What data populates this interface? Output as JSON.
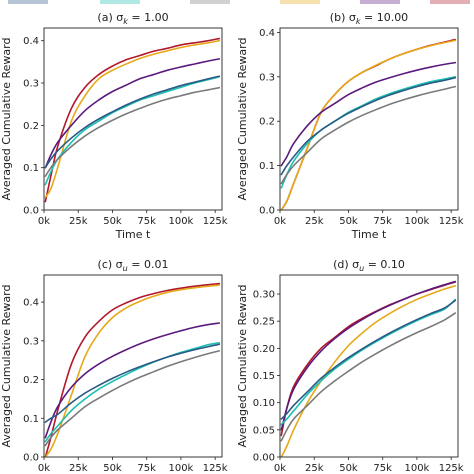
{
  "shared": {
    "ylabel": "Averaged Cumulative Reward",
    "xlabel": "Time t",
    "xticks": [
      "0k",
      "25k",
      "50k",
      "75k",
      "100k",
      "125k"
    ],
    "colors": {
      "purple": "#5b1a7e",
      "red": "#b2182b",
      "orange": "#e6a817",
      "teal": "#1cbfb0",
      "navy": "#2a5a86",
      "gray": "#7a7a7a"
    }
  },
  "chart_data": [
    {
      "type": "line",
      "title": "(a) σ_k = 1.00",
      "xlabel": "Time t",
      "ylabel": "Averaged Cumulative Reward",
      "xlim": [
        0,
        130
      ],
      "ylim": [
        0,
        0.43
      ],
      "yticks": [
        "0.0",
        "0.1",
        "0.2",
        "0.3",
        "0.4"
      ],
      "x": [
        1,
        5,
        10,
        20,
        30,
        40,
        50,
        60,
        70,
        80,
        90,
        100,
        110,
        120,
        128
      ],
      "series": [
        {
          "color": "#b2182b",
          "values": [
            0.02,
            0.08,
            0.15,
            0.24,
            0.29,
            0.32,
            0.34,
            0.355,
            0.365,
            0.375,
            0.382,
            0.39,
            0.395,
            0.4,
            0.405
          ]
        },
        {
          "color": "#e6a817",
          "values": [
            0.03,
            0.05,
            0.1,
            0.21,
            0.27,
            0.31,
            0.33,
            0.345,
            0.358,
            0.368,
            0.376,
            0.384,
            0.39,
            0.395,
            0.4
          ]
        },
        {
          "color": "#5b1a7e",
          "values": [
            0.1,
            0.13,
            0.16,
            0.2,
            0.235,
            0.26,
            0.28,
            0.295,
            0.31,
            0.32,
            0.33,
            0.338,
            0.345,
            0.352,
            0.357
          ]
        },
        {
          "color": "#1cbfb0",
          "values": [
            0.06,
            0.09,
            0.12,
            0.16,
            0.19,
            0.21,
            0.23,
            0.245,
            0.26,
            0.27,
            0.28,
            0.29,
            0.3,
            0.308,
            0.315
          ]
        },
        {
          "color": "#2a5a86",
          "values": [
            0.1,
            0.12,
            0.14,
            0.17,
            0.195,
            0.215,
            0.232,
            0.248,
            0.262,
            0.274,
            0.284,
            0.294,
            0.302,
            0.31,
            0.316
          ]
        },
        {
          "color": "#7a7a7a",
          "values": [
            0.08,
            0.1,
            0.12,
            0.15,
            0.175,
            0.195,
            0.212,
            0.227,
            0.24,
            0.252,
            0.262,
            0.27,
            0.278,
            0.284,
            0.289
          ]
        }
      ]
    },
    {
      "type": "line",
      "title": "(b) σ_k = 10.00",
      "xlabel": "Time t",
      "ylabel": "Averaged Cumulative Reward",
      "xlim": [
        0,
        130
      ],
      "ylim": [
        0,
        0.41
      ],
      "yticks": [
        "0.0",
        "0.1",
        "0.2",
        "0.3",
        "0.4"
      ],
      "x": [
        1,
        5,
        10,
        20,
        30,
        40,
        50,
        60,
        70,
        80,
        90,
        100,
        110,
        120,
        128
      ],
      "series": [
        {
          "color": "#b2182b",
          "values": [
            0.0,
            0.02,
            0.06,
            0.14,
            0.22,
            0.26,
            0.29,
            0.31,
            0.325,
            0.34,
            0.352,
            0.362,
            0.371,
            0.378,
            0.384
          ]
        },
        {
          "color": "#e6a817",
          "values": [
            0.0,
            0.02,
            0.06,
            0.14,
            0.22,
            0.26,
            0.29,
            0.31,
            0.326,
            0.34,
            0.352,
            0.362,
            0.37,
            0.377,
            0.382
          ]
        },
        {
          "color": "#5b1a7e",
          "values": [
            0.1,
            0.12,
            0.15,
            0.19,
            0.22,
            0.24,
            0.26,
            0.275,
            0.288,
            0.298,
            0.307,
            0.315,
            0.322,
            0.328,
            0.332
          ]
        },
        {
          "color": "#1cbfb0",
          "values": [
            0.05,
            0.08,
            0.11,
            0.15,
            0.18,
            0.2,
            0.22,
            0.235,
            0.25,
            0.262,
            0.272,
            0.281,
            0.289,
            0.295,
            0.3
          ]
        },
        {
          "color": "#2a5a86",
          "values": [
            0.08,
            0.1,
            0.12,
            0.155,
            0.18,
            0.2,
            0.218,
            0.233,
            0.247,
            0.259,
            0.269,
            0.278,
            0.286,
            0.292,
            0.298
          ]
        },
        {
          "color": "#7a7a7a",
          "values": [
            0.06,
            0.08,
            0.1,
            0.13,
            0.16,
            0.18,
            0.198,
            0.213,
            0.226,
            0.238,
            0.248,
            0.257,
            0.265,
            0.272,
            0.278
          ]
        }
      ]
    },
    {
      "type": "line",
      "title": "(c) σ_u = 0.01",
      "xlabel": "",
      "ylabel": "Averaged Cumulative Reward",
      "xlim": [
        0,
        130
      ],
      "ylim": [
        0,
        0.47
      ],
      "yticks": [
        "0.0",
        "0.1",
        "0.2",
        "0.3",
        "0.4"
      ],
      "x": [
        1,
        5,
        10,
        20,
        30,
        40,
        50,
        60,
        70,
        80,
        90,
        100,
        110,
        120,
        128
      ],
      "series": [
        {
          "color": "#b2182b",
          "values": [
            0.0,
            0.05,
            0.12,
            0.24,
            0.31,
            0.35,
            0.38,
            0.398,
            0.412,
            0.422,
            0.43,
            0.436,
            0.441,
            0.445,
            0.448
          ]
        },
        {
          "color": "#e6a817",
          "values": [
            0.0,
            0.02,
            0.06,
            0.16,
            0.26,
            0.32,
            0.36,
            0.385,
            0.402,
            0.415,
            0.425,
            0.432,
            0.437,
            0.441,
            0.444
          ]
        },
        {
          "color": "#5b1a7e",
          "values": [
            0.05,
            0.09,
            0.13,
            0.18,
            0.215,
            0.24,
            0.26,
            0.277,
            0.292,
            0.305,
            0.316,
            0.326,
            0.335,
            0.342,
            0.346
          ]
        },
        {
          "color": "#1cbfb0",
          "values": [
            0.04,
            0.06,
            0.08,
            0.12,
            0.15,
            0.175,
            0.195,
            0.213,
            0.23,
            0.245,
            0.258,
            0.27,
            0.28,
            0.29,
            0.295
          ]
        },
        {
          "color": "#2a5a86",
          "values": [
            0.09,
            0.1,
            0.11,
            0.14,
            0.165,
            0.185,
            0.203,
            0.219,
            0.233,
            0.246,
            0.258,
            0.268,
            0.277,
            0.285,
            0.291
          ]
        },
        {
          "color": "#7a7a7a",
          "values": [
            0.03,
            0.05,
            0.07,
            0.1,
            0.13,
            0.152,
            0.172,
            0.19,
            0.206,
            0.22,
            0.234,
            0.246,
            0.257,
            0.267,
            0.274
          ]
        }
      ]
    },
    {
      "type": "line",
      "title": "(d) σ_u = 0.10",
      "xlabel": "",
      "ylabel": "Averaged Cumulative Reward",
      "xlim": [
        0,
        130
      ],
      "ylim": [
        0,
        0.335
      ],
      "yticks": [
        "0.00",
        "0.05",
        "0.10",
        "0.15",
        "0.20",
        "0.25",
        "0.30"
      ],
      "x": [
        1,
        5,
        10,
        20,
        30,
        40,
        50,
        60,
        70,
        80,
        90,
        100,
        110,
        120,
        128
      ],
      "series": [
        {
          "color": "#b2182b",
          "values": [
            0.04,
            0.09,
            0.13,
            0.17,
            0.2,
            0.22,
            0.24,
            0.255,
            0.268,
            0.28,
            0.29,
            0.3,
            0.308,
            0.316,
            0.322
          ]
        },
        {
          "color": "#e6a817",
          "values": [
            0.0,
            0.02,
            0.05,
            0.1,
            0.14,
            0.175,
            0.205,
            0.228,
            0.248,
            0.264,
            0.278,
            0.29,
            0.3,
            0.309,
            0.315
          ]
        },
        {
          "color": "#5b1a7e",
          "values": [
            0.05,
            0.09,
            0.125,
            0.165,
            0.195,
            0.218,
            0.237,
            0.253,
            0.267,
            0.279,
            0.29,
            0.3,
            0.309,
            0.317,
            0.323
          ]
        },
        {
          "color": "#1cbfb0",
          "values": [
            0.06,
            0.07,
            0.085,
            0.115,
            0.14,
            0.162,
            0.18,
            0.197,
            0.212,
            0.226,
            0.239,
            0.251,
            0.262,
            0.272,
            0.29
          ]
        },
        {
          "color": "#2a5a86",
          "values": [
            0.07,
            0.08,
            0.095,
            0.12,
            0.145,
            0.165,
            0.183,
            0.199,
            0.214,
            0.228,
            0.241,
            0.253,
            0.264,
            0.274,
            0.288
          ]
        },
        {
          "color": "#7a7a7a",
          "values": [
            0.03,
            0.05,
            0.07,
            0.095,
            0.12,
            0.14,
            0.158,
            0.175,
            0.19,
            0.204,
            0.217,
            0.229,
            0.24,
            0.252,
            0.265
          ]
        }
      ]
    }
  ]
}
